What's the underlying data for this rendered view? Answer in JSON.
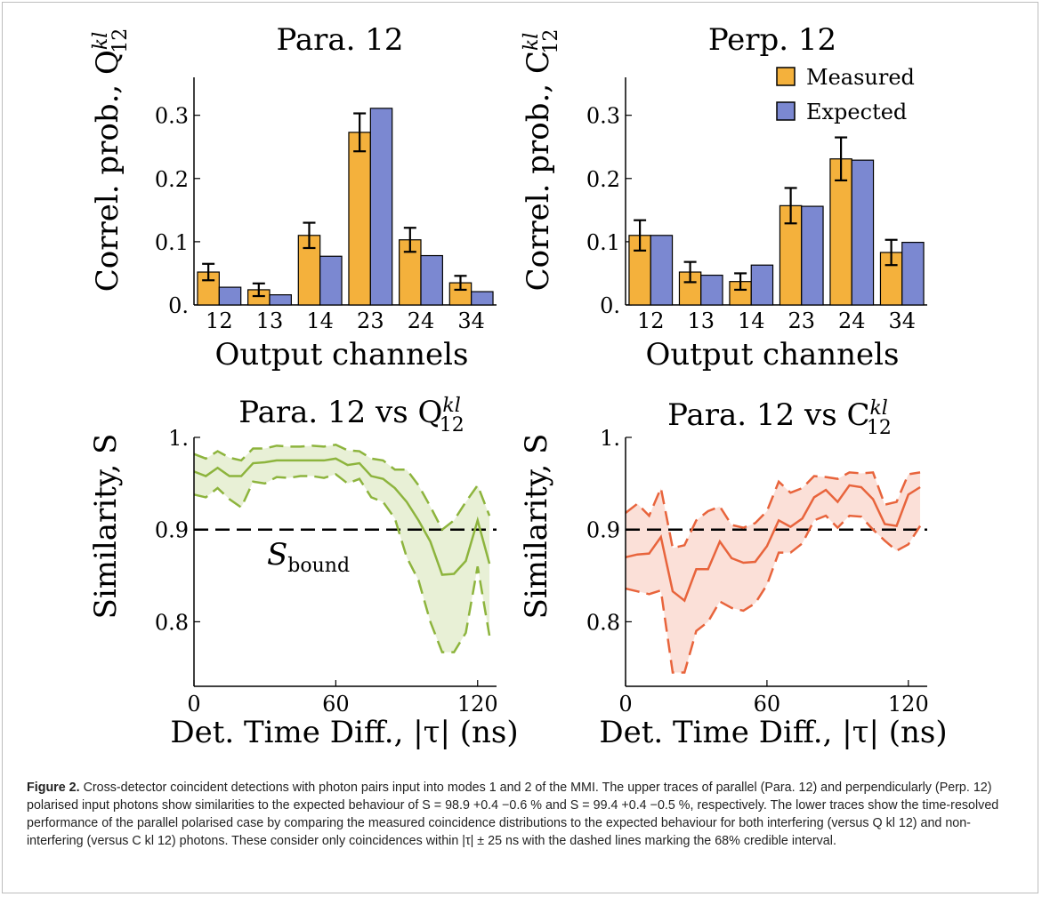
{
  "chart_data": [
    {
      "type": "bar",
      "title": "Para. 12",
      "ylabel": "Correl. prob., Q",
      "ylabel_sup": "kl",
      "ylabel_sub": "12",
      "xlabel": "Output channels",
      "categories": [
        "12",
        "13",
        "14",
        "23",
        "24",
        "34"
      ],
      "ylim": [
        0,
        0.36
      ],
      "yticks": [
        "0.",
        "0.1",
        "0.2",
        "0.3"
      ],
      "series": [
        {
          "name": "Measured",
          "values": [
            0.052,
            0.024,
            0.11,
            0.273,
            0.103,
            0.035
          ],
          "errors": [
            0.013,
            0.01,
            0.02,
            0.03,
            0.019,
            0.011
          ]
        },
        {
          "name": "Expected",
          "values": [
            0.028,
            0.016,
            0.077,
            0.311,
            0.078,
            0.021
          ]
        }
      ],
      "colors": {
        "measured": "#f4b13c",
        "expected": "#7b88d1"
      }
    },
    {
      "type": "bar",
      "title": "Perp. 12",
      "ylabel": "Correl. prob., C",
      "ylabel_sup": "kl",
      "ylabel_sub": "12",
      "xlabel": "Output channels",
      "categories": [
        "12",
        "13",
        "14",
        "23",
        "24",
        "34"
      ],
      "ylim": [
        0,
        0.36
      ],
      "yticks": [
        "0.",
        "0.1",
        "0.2",
        "0.3"
      ],
      "series": [
        {
          "name": "Measured",
          "values": [
            0.11,
            0.052,
            0.037,
            0.157,
            0.231,
            0.083
          ],
          "errors": [
            0.024,
            0.016,
            0.013,
            0.028,
            0.034,
            0.02
          ]
        },
        {
          "name": "Expected",
          "values": [
            0.11,
            0.047,
            0.063,
            0.156,
            0.229,
            0.099
          ]
        }
      ],
      "legend": {
        "position": "top-right",
        "entries": [
          "Measured",
          "Expected"
        ]
      },
      "colors": {
        "measured": "#f4b13c",
        "expected": "#7b88d1"
      }
    },
    {
      "type": "line",
      "title": "Para. 12 vs Q",
      "title_sup": "kl",
      "title_sub": "12",
      "ylabel": "Similarity, S",
      "xlabel": "Det. Time Diff., |τ| (ns)",
      "xlim": [
        0,
        128
      ],
      "ylim": [
        0.73,
        1.0
      ],
      "xticks": [
        "0",
        "60",
        "120"
      ],
      "yticks": [
        "0.8",
        "0.9",
        "1."
      ],
      "bound": 0.9,
      "bound_label": "S",
      "bound_label_sub": "bound",
      "x": [
        0,
        5,
        10,
        15,
        20,
        25,
        30,
        35,
        40,
        45,
        50,
        55,
        60,
        65,
        70,
        75,
        80,
        85,
        90,
        95,
        100,
        105,
        110,
        115,
        120,
        125
      ],
      "series": [
        {
          "name": "mean",
          "values": [
            0.963,
            0.958,
            0.967,
            0.958,
            0.958,
            0.972,
            0.973,
            0.975,
            0.975,
            0.975,
            0.975,
            0.975,
            0.977,
            0.97,
            0.972,
            0.958,
            0.955,
            0.945,
            0.93,
            0.91,
            0.887,
            0.851,
            0.852,
            0.866,
            0.91,
            0.863
          ]
        },
        {
          "name": "upper",
          "values": [
            0.982,
            0.977,
            0.985,
            0.978,
            0.975,
            0.988,
            0.988,
            0.991,
            0.99,
            0.99,
            0.991,
            0.99,
            0.992,
            0.986,
            0.985,
            0.977,
            0.975,
            0.965,
            0.965,
            0.948,
            0.925,
            0.9,
            0.91,
            0.93,
            0.948,
            0.915
          ]
        },
        {
          "name": "lower",
          "values": [
            0.938,
            0.935,
            0.945,
            0.933,
            0.924,
            0.952,
            0.95,
            0.957,
            0.956,
            0.958,
            0.958,
            0.956,
            0.96,
            0.95,
            0.955,
            0.935,
            0.93,
            0.912,
            0.87,
            0.845,
            0.8,
            0.767,
            0.767,
            0.788,
            0.86,
            0.785
          ]
        }
      ],
      "color": "#8db43d",
      "fill": "#e8f0d6"
    },
    {
      "type": "line",
      "title": "Para. 12 vs C",
      "title_sup": "kl",
      "title_sub": "12",
      "ylabel": "Similarity, S",
      "xlabel": "Det. Time Diff., |τ| (ns)",
      "xlim": [
        0,
        128
      ],
      "ylim": [
        0.73,
        1.0
      ],
      "xticks": [
        "0",
        "60",
        "120"
      ],
      "yticks": [
        "0.8",
        "0.9",
        "1."
      ],
      "bound": 0.9,
      "x": [
        0,
        5,
        10,
        15,
        20,
        25,
        30,
        35,
        40,
        45,
        50,
        55,
        60,
        65,
        70,
        75,
        80,
        85,
        90,
        95,
        100,
        105,
        110,
        115,
        120,
        125
      ],
      "series": [
        {
          "name": "mean",
          "values": [
            0.87,
            0.873,
            0.874,
            0.892,
            0.833,
            0.823,
            0.857,
            0.857,
            0.887,
            0.869,
            0.864,
            0.865,
            0.882,
            0.91,
            0.903,
            0.912,
            0.935,
            0.943,
            0.93,
            0.948,
            0.946,
            0.933,
            0.906,
            0.904,
            0.938,
            0.946
          ]
        },
        {
          "name": "upper",
          "values": [
            0.918,
            0.928,
            0.915,
            0.945,
            0.88,
            0.883,
            0.91,
            0.92,
            0.925,
            0.905,
            0.902,
            0.907,
            0.92,
            0.952,
            0.94,
            0.945,
            0.958,
            0.957,
            0.955,
            0.962,
            0.961,
            0.962,
            0.927,
            0.93,
            0.96,
            0.962
          ]
        },
        {
          "name": "lower",
          "values": [
            0.836,
            0.833,
            0.83,
            0.834,
            0.745,
            0.745,
            0.79,
            0.8,
            0.822,
            0.815,
            0.812,
            0.82,
            0.84,
            0.875,
            0.875,
            0.885,
            0.91,
            0.915,
            0.902,
            0.915,
            0.914,
            0.9,
            0.888,
            0.877,
            0.884,
            0.904
          ]
        }
      ],
      "color": "#e8643c",
      "fill": "#fbe0d8"
    }
  ],
  "caption": {
    "label": "Figure 2.",
    "text": " Cross-detector coincident detections with photon pairs input into modes 1 and 2 of the MMI. The upper traces of parallel (Para. 12) and perpendicularly (Perp. 12) polarised input photons show similarities to the expected behaviour of S = 98.9 +0.4 −0.6 % and S = 99.4 +0.4 −0.5 %, respectively. The lower traces show the time-resolved performance of the parallel polarised case by comparing the measured coincidence distributions to the expected behaviour for both interfering (versus Q kl 12) and non-interfering (versus C kl 12) photons. These consider only coincidences within |τ| ± 25 ns with the dashed lines marking the 68% credible interval."
  }
}
